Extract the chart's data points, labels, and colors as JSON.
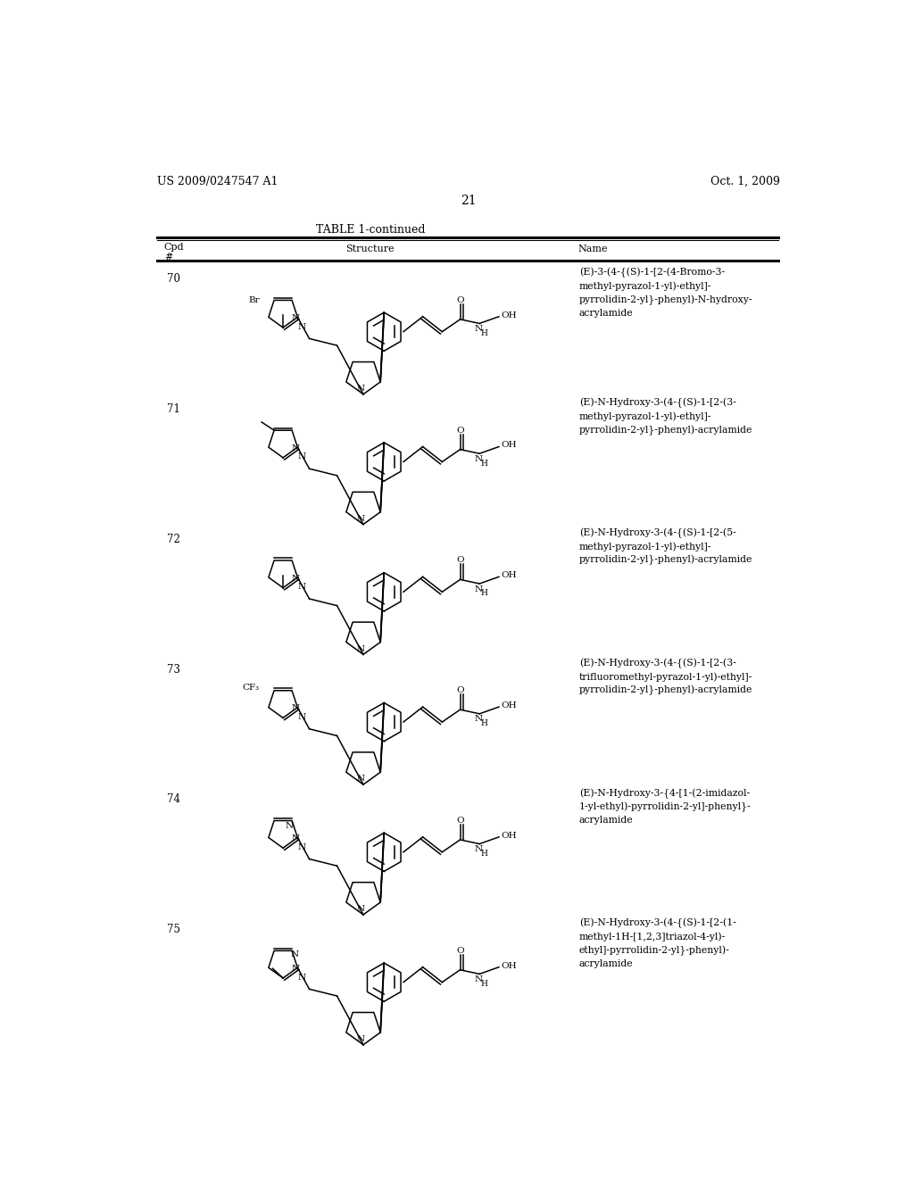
{
  "page_number": "21",
  "patent_number": "US 2009/0247547 A1",
  "patent_date": "Oct. 1, 2009",
  "table_title": "TABLE 1-continued",
  "background_color": "#ffffff",
  "text_color": "#000000",
  "compounds": [
    {
      "id": "70",
      "name": "(E)-3-(4-{(S)-1-[2-(4-Bromo-3-\nmethyl-pyrazol-1-yl)-ethyl]-\npyrrolidin-2-yl}-phenyl)-N-hydroxy-\nacrylamide",
      "het_type": "pyrazole_4bromo_3methyl"
    },
    {
      "id": "71",
      "name": "(E)-N-Hydroxy-3-(4-{(S)-1-[2-(3-\nmethyl-pyrazol-1-yl)-ethyl]-\npyrrolidin-2-yl}-phenyl)-acrylamide",
      "het_type": "pyrazole_3methyl"
    },
    {
      "id": "72",
      "name": "(E)-N-Hydroxy-3-(4-{(S)-1-[2-(5-\nmethyl-pyrazol-1-yl)-ethyl]-\npyrrolidin-2-yl}-phenyl)-acrylamide",
      "het_type": "pyrazole_5methyl"
    },
    {
      "id": "73",
      "name": "(E)-N-Hydroxy-3-(4-{(S)-1-[2-(3-\ntrifluoromethyl-pyrazol-1-yl)-ethyl]-\npyrrolidin-2-yl}-phenyl)-acrylamide",
      "het_type": "pyrazole_3cf3"
    },
    {
      "id": "74",
      "name": "(E)-N-Hydroxy-3-{4-[1-(2-imidazol-\n1-yl-ethyl)-pyrrolidin-2-yl]-phenyl}-\nacrylamide",
      "het_type": "imidazole"
    },
    {
      "id": "75",
      "name": "(E)-N-Hydroxy-3-(4-{(S)-1-[2-(1-\nmethyl-1H-[1,2,3]triazol-4-yl)-\nethyl]-pyrrolidin-2-yl}-phenyl)-\nacrylamide",
      "het_type": "triazole_1methyl"
    }
  ]
}
